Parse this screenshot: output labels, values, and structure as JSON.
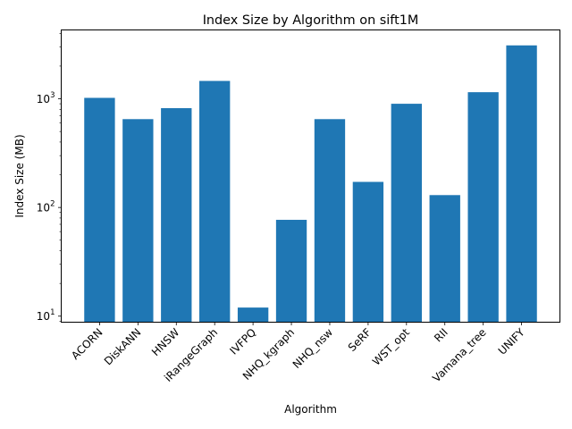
{
  "chart_data": {
    "type": "bar",
    "title": "Index Size by Algorithm on sift1M",
    "xlabel": "Algorithm",
    "ylabel": "Index Size (MB)",
    "yscale": "log",
    "ylim": [
      8.8,
      4300
    ],
    "categories": [
      "ACORN",
      "DiskANN",
      "HNSW",
      "iRangeGraph",
      "IVFPQ",
      "NHQ_kgraph",
      "NHQ_nsw",
      "SeRF",
      "WST_opt",
      "RII",
      "Vamana_tree",
      "UNIFY"
    ],
    "values": [
      1020,
      650,
      820,
      1460,
      12,
      77,
      650,
      172,
      900,
      130,
      1150,
      3100
    ],
    "bar_color": "#1f77b4",
    "y_major_ticks": [
      {
        "value": 10,
        "base": "10",
        "exp": "1"
      },
      {
        "value": 100,
        "base": "10",
        "exp": "2"
      },
      {
        "value": 1000,
        "base": "10",
        "exp": "3"
      }
    ],
    "grid": false,
    "legend": "none"
  }
}
